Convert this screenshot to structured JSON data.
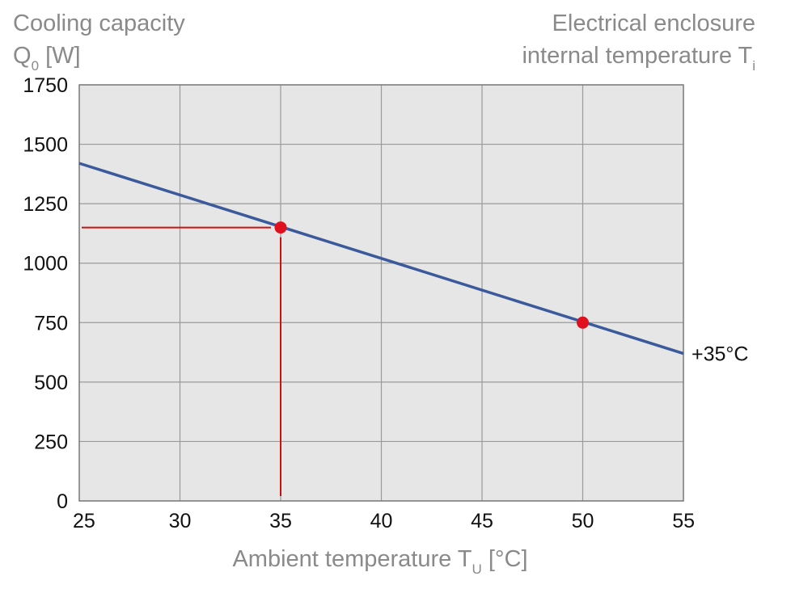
{
  "chart_data": {
    "type": "line",
    "y_title_line1": "Cooling capacity",
    "y_title_q": "Q",
    "y_title_q_sub": "0",
    "y_title_unit": " [W]",
    "right_title_line1": "Electrical enclosure",
    "right_title_line2": "internal temperature T",
    "right_title_sub": "i",
    "x_title": "Ambient temperature T",
    "x_title_sub": "U",
    "x_title_unit": " [°C]",
    "xlim": [
      25,
      55
    ],
    "ylim": [
      0,
      1750
    ],
    "x_ticks": [
      "25",
      "30",
      "35",
      "40",
      "45",
      "50",
      "55"
    ],
    "y_ticks": [
      "0",
      "250",
      "500",
      "750",
      "1000",
      "1250",
      "1500",
      "1750"
    ],
    "grid": true,
    "series": [
      {
        "name": "+35°C",
        "color": "#3a5a9c",
        "x": [
          25,
          55
        ],
        "y": [
          1420,
          620
        ]
      }
    ],
    "markers": [
      {
        "x": 35,
        "y": 1150,
        "color": "#e0101e"
      },
      {
        "x": 50,
        "y": 750,
        "color": "#e0101e"
      }
    ],
    "guide_lines": {
      "color": "#cc1111",
      "point": {
        "x": 35,
        "y": 1150
      }
    },
    "plot_background": "#e6e6e6",
    "grid_color": "#9a9a9a"
  }
}
